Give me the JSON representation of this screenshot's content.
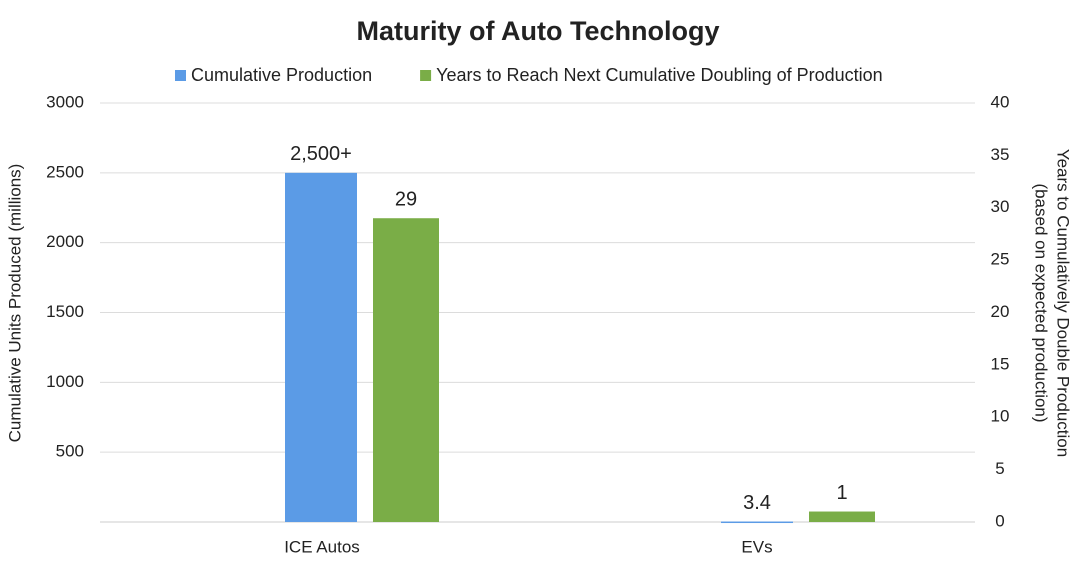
{
  "chart_data": {
    "type": "bar",
    "title": "Maturity of Auto Technology",
    "categories": [
      "ICE Autos",
      "EVs"
    ],
    "series": [
      {
        "name": "Cumulative Production",
        "color": "#5b9be6",
        "values": [
          2500,
          3.4
        ],
        "value_labels": [
          "2,500+",
          "3.4"
        ]
      },
      {
        "name": "Years to Reach Next Cumulative Doubling of Production",
        "color": "#7aad47",
        "values": [
          29,
          1
        ],
        "axis": "y2"
      }
    ],
    "ylabel": "Cumulative Units Produced (millions)",
    "y2label": [
      "Years to Cumulatively Double Production",
      "(based on expected production)"
    ],
    "ylim": [
      0,
      3000
    ],
    "yticks": [
      500,
      1000,
      1500,
      2000,
      2500,
      3000
    ],
    "y2lim": [
      0,
      40
    ],
    "y2ticks": [
      0,
      5,
      10,
      15,
      20,
      25,
      30,
      35,
      40
    ],
    "grid": true,
    "legend": "top"
  }
}
